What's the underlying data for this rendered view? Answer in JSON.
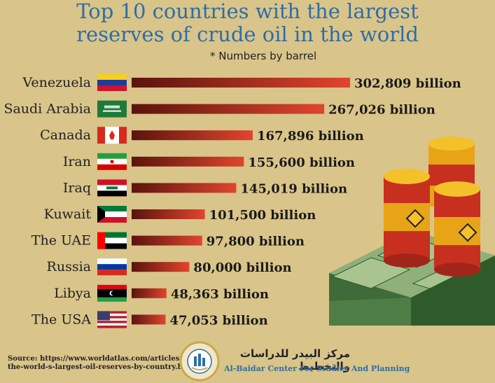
{
  "title_line1": "Top 10 countries with the largest",
  "title_line2": "reserves of crude oil in the world",
  "subtitle": "* Numbers by barrel",
  "source_line1": "Source: https://www.worldatlas.com/articles/",
  "source_line2": "the-world-s-largest-oil-reserves-by-country.html",
  "org_arabic": "مركز البيدر للدراسات والتخطيط",
  "org_english": "Al-Baidar Center For Studies And Planning",
  "colors": {
    "bar_dark": "#6b1a12",
    "bar_light": "#e0452e",
    "title": "#2e6da6",
    "background": "#d9c48a"
  },
  "chart_data": {
    "type": "bar",
    "orientation": "horizontal",
    "categories": [
      "Venezuela",
      "Saudi Arabia",
      "Canada",
      "Iran",
      "Iraq",
      "Kuwait",
      "The UAE",
      "Russia",
      "Libya",
      "The USA"
    ],
    "values": [
      302809,
      267026,
      167896,
      155600,
      145019,
      101500,
      97800,
      80000,
      48363,
      47053
    ],
    "value_labels": [
      "302,809 billion",
      "267,026 billion",
      "167,896 billion",
      "155,600 billion",
      "145,019 billion",
      "101,500 billion",
      "97,800 billion",
      "80,000 billion",
      "48,363 billion",
      "47,053 billion"
    ],
    "flags": [
      "venezuela-flag-icon",
      "saudi-arabia-flag-icon",
      "canada-flag-icon",
      "iran-flag-icon",
      "iraq-flag-icon",
      "kuwait-flag-icon",
      "uae-flag-icon",
      "russia-flag-icon",
      "libya-flag-icon",
      "usa-flag-icon"
    ]
  }
}
